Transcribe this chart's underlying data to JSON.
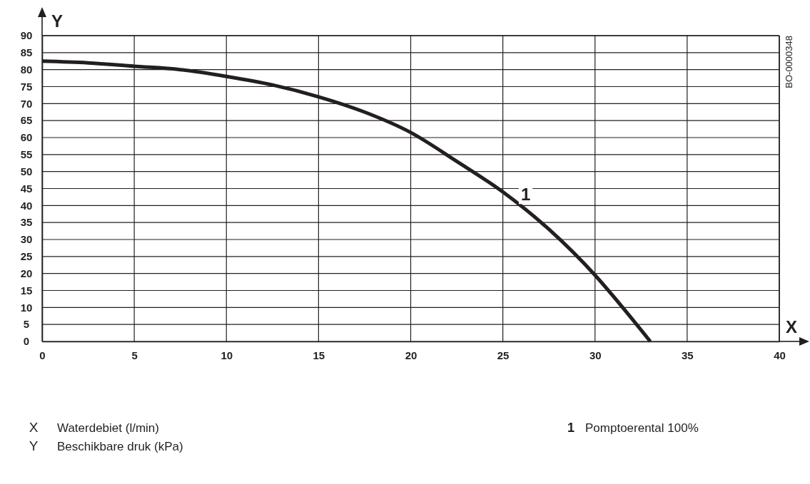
{
  "chart_data": {
    "type": "line",
    "xlabel": "X",
    "ylabel": "Y",
    "xlim": [
      0,
      40
    ],
    "xticks": [
      0,
      5,
      10,
      15,
      20,
      25,
      30,
      35,
      40
    ],
    "ylim": [
      0,
      90
    ],
    "yticks": [
      0,
      5,
      10,
      15,
      20,
      25,
      30,
      35,
      40,
      45,
      50,
      55,
      60,
      65,
      70,
      75,
      80,
      85,
      90
    ],
    "grid": true,
    "legend": "bottom",
    "marker": "none",
    "line_style": "solid",
    "series": [
      {
        "name": "Pomptoerental 100%",
        "color": "#231f20",
        "x": [
          0,
          2.5,
          5,
          7.5,
          10,
          12.5,
          15,
          17.5,
          20,
          22.5,
          25,
          27.5,
          30,
          31.5,
          33
        ],
        "values": [
          82.5,
          82,
          81,
          80,
          78,
          75.5,
          72,
          67.5,
          61.5,
          53,
          44,
          33,
          19.5,
          10,
          0
        ]
      }
    ],
    "annotations": [
      "1",
      "Waterdebiet (l/min)",
      "Beschikbare druk (kPa)",
      "BO-0000348"
    ]
  }
}
